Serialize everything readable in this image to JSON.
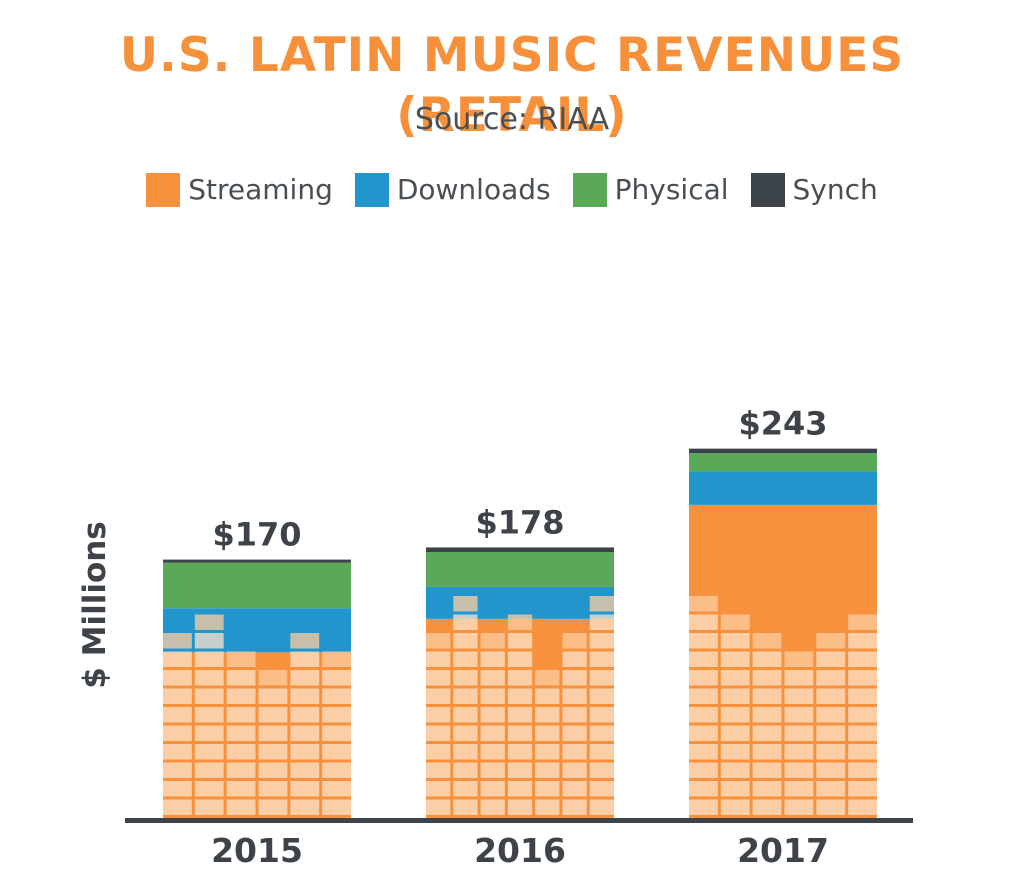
{
  "colors": {
    "title": "#f7903a",
    "subtitle": "#4a4f54",
    "text": "#3d4348",
    "tile": "#fde3c8",
    "tile_mid": "#fccda0"
  },
  "chart_data": {
    "type": "bar",
    "stacked": true,
    "title": "U.S. LATIN MUSIC REVENUES (RETAIL)",
    "subtitle": "Source: RIAA",
    "xlabel": "",
    "ylabel": "$ Millions",
    "ylim": [
      0,
      260
    ],
    "categories": [
      "2015",
      "2016",
      "2017"
    ],
    "totals": [
      "$170",
      "$178",
      "$243"
    ],
    "total_values": [
      170,
      178,
      243
    ],
    "series": [
      {
        "name": "Streaming",
        "color": "#f7913d",
        "values": [
          109,
          131,
          206
        ]
      },
      {
        "name": "Downloads",
        "color": "#2395cd",
        "values": [
          29,
          21,
          22
        ]
      },
      {
        "name": "Physical",
        "color": "#5aa956",
        "values": [
          30,
          23,
          12
        ]
      },
      {
        "name": "Synch",
        "color": "#3d4449",
        "values": [
          2,
          3,
          3
        ]
      }
    ],
    "legend_position": "top",
    "grid": false
  }
}
